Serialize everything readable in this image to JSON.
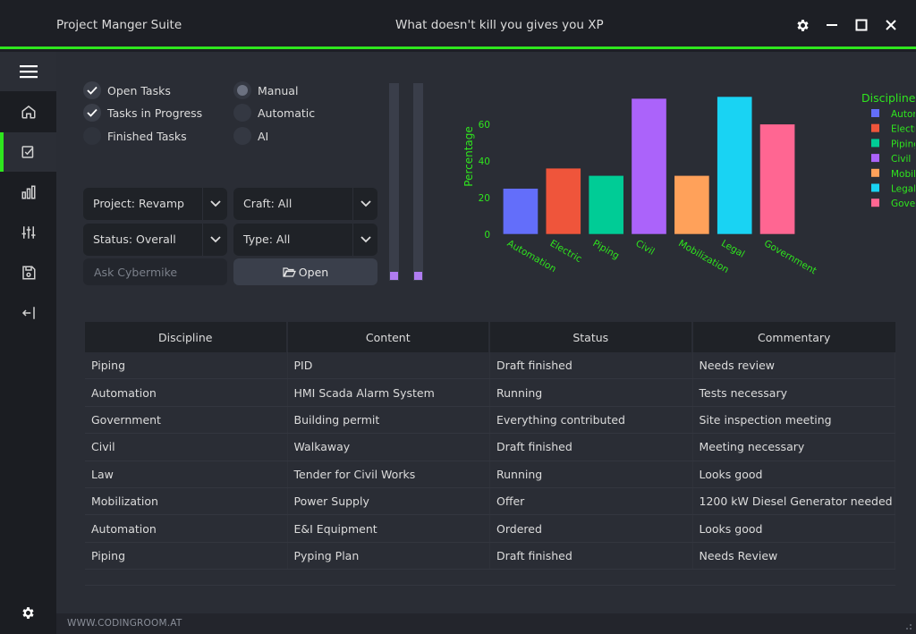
{
  "titlebar": {
    "app_title": "Project Manger Suite",
    "motto": "What doesn't kill you gives you XP",
    "accent_color": "#2fe61e",
    "icons": [
      "gear-icon",
      "minimize-icon",
      "maximize-icon",
      "close-icon"
    ]
  },
  "sidebar": {
    "items": [
      {
        "icon": "menu-icon"
      },
      {
        "icon": "home-icon"
      },
      {
        "icon": "tasks-icon",
        "active": true
      },
      {
        "icon": "bar-chart-icon"
      },
      {
        "icon": "sliders-icon"
      },
      {
        "icon": "save-icon"
      },
      {
        "icon": "logout-icon"
      },
      {
        "icon": "settings-gear-icon"
      }
    ]
  },
  "filters": {
    "tasks": [
      {
        "label": "Open Tasks",
        "checked": true
      },
      {
        "label": "Tasks in Progress",
        "checked": true
      },
      {
        "label": "Finished Tasks",
        "checked": false
      }
    ],
    "mode": [
      {
        "label": "Manual",
        "selected": true
      },
      {
        "label": "Automatic",
        "selected": false
      },
      {
        "label": "AI",
        "selected": false
      }
    ],
    "project": "Project: Revamp",
    "craft": "Craft: All",
    "status": "Status: Overall",
    "type": "Type: All",
    "ask_placeholder": "Ask Cybermike",
    "open_label": "Open"
  },
  "chart_data": {
    "type": "bar",
    "ylabel": "Percentage",
    "legend_title": "Discipline",
    "legend_position": "top-right",
    "ylim": [
      0,
      75
    ],
    "yticks": [
      0,
      20,
      40,
      60
    ],
    "categories": [
      "Automation",
      "Electric",
      "Piping",
      "Civil",
      "Mobilization",
      "Legal",
      "Government"
    ],
    "values": [
      25,
      36,
      32,
      74,
      32,
      75,
      60
    ],
    "colors": [
      "#636efa",
      "#ef553b",
      "#00cc96",
      "#ab63fa",
      "#ffa15a",
      "#19d3f3",
      "#ff6692"
    ],
    "text_color": "#2fe61e",
    "grid": false
  },
  "table": {
    "headers": [
      "Discipline",
      "Content",
      "Status",
      "Commentary"
    ],
    "rows": [
      [
        "Piping",
        "PID",
        "Draft finished",
        "Needs review"
      ],
      [
        "Automation",
        "HMI Scada Alarm System",
        "Running",
        "Tests necessary"
      ],
      [
        "Government",
        "Building permit",
        "Everything contributed",
        "Site inspection meeting"
      ],
      [
        "Civil",
        "Walkaway",
        "Draft finished",
        "Meeting necessary"
      ],
      [
        "Law",
        "Tender for Civil Works",
        "Running",
        "Looks good"
      ],
      [
        "Mobilization",
        "Power Supply",
        "Offer",
        "1200 kW Diesel Generator needed"
      ],
      [
        "Automation",
        "E&I Equipment",
        "Ordered",
        "Looks good"
      ],
      [
        "Piping",
        "Pyping Plan",
        "Draft finished",
        "Needs Review"
      ]
    ]
  },
  "footer": {
    "credit": "WWW.CODINGROOM.AT"
  }
}
